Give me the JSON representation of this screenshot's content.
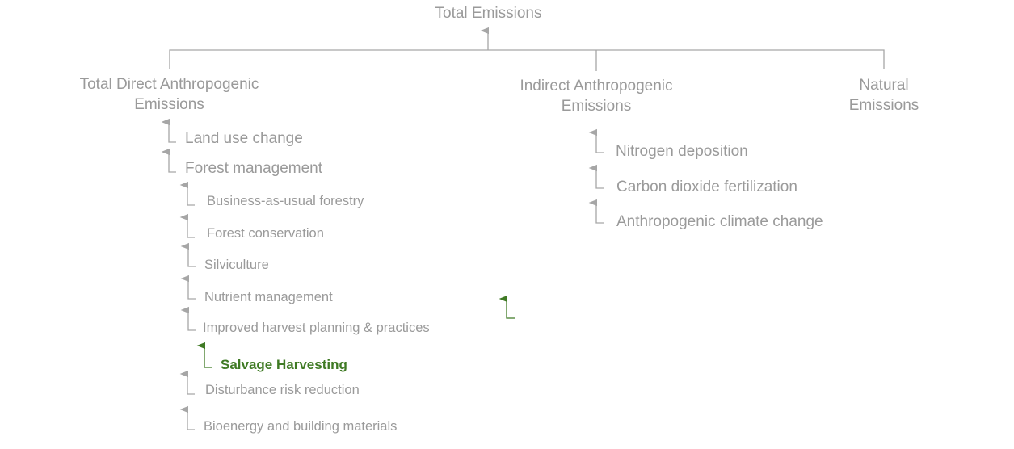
{
  "diagram": {
    "root": "Total Emissions",
    "branches": {
      "direct": "Total Direct Anthropogenic Emissions",
      "indirect": "Indirect Anthropogenic Emissions",
      "natural": "Natural Emissions"
    },
    "direct_children": {
      "land_use": "Land use change",
      "forest_mgmt": "Forest management"
    },
    "forest_management_children": [
      "Business-as-usual forestry",
      "Forest conservation",
      "Silviculture",
      "Nutrient management",
      "Improved harvest planning & practices",
      "Salvage Harvesting",
      "Disturbance risk reduction",
      "Bioenergy and building materials"
    ],
    "indirect_children": [
      "Nitrogen deposition",
      "Carbon dioxide fertilization",
      "Anthropogenic climate change"
    ],
    "highlighted_item": "Salvage Harvesting",
    "colors": {
      "text": "#9a9a9a",
      "connector": "#a6a6a6",
      "highlight": "#3f7a24"
    }
  }
}
